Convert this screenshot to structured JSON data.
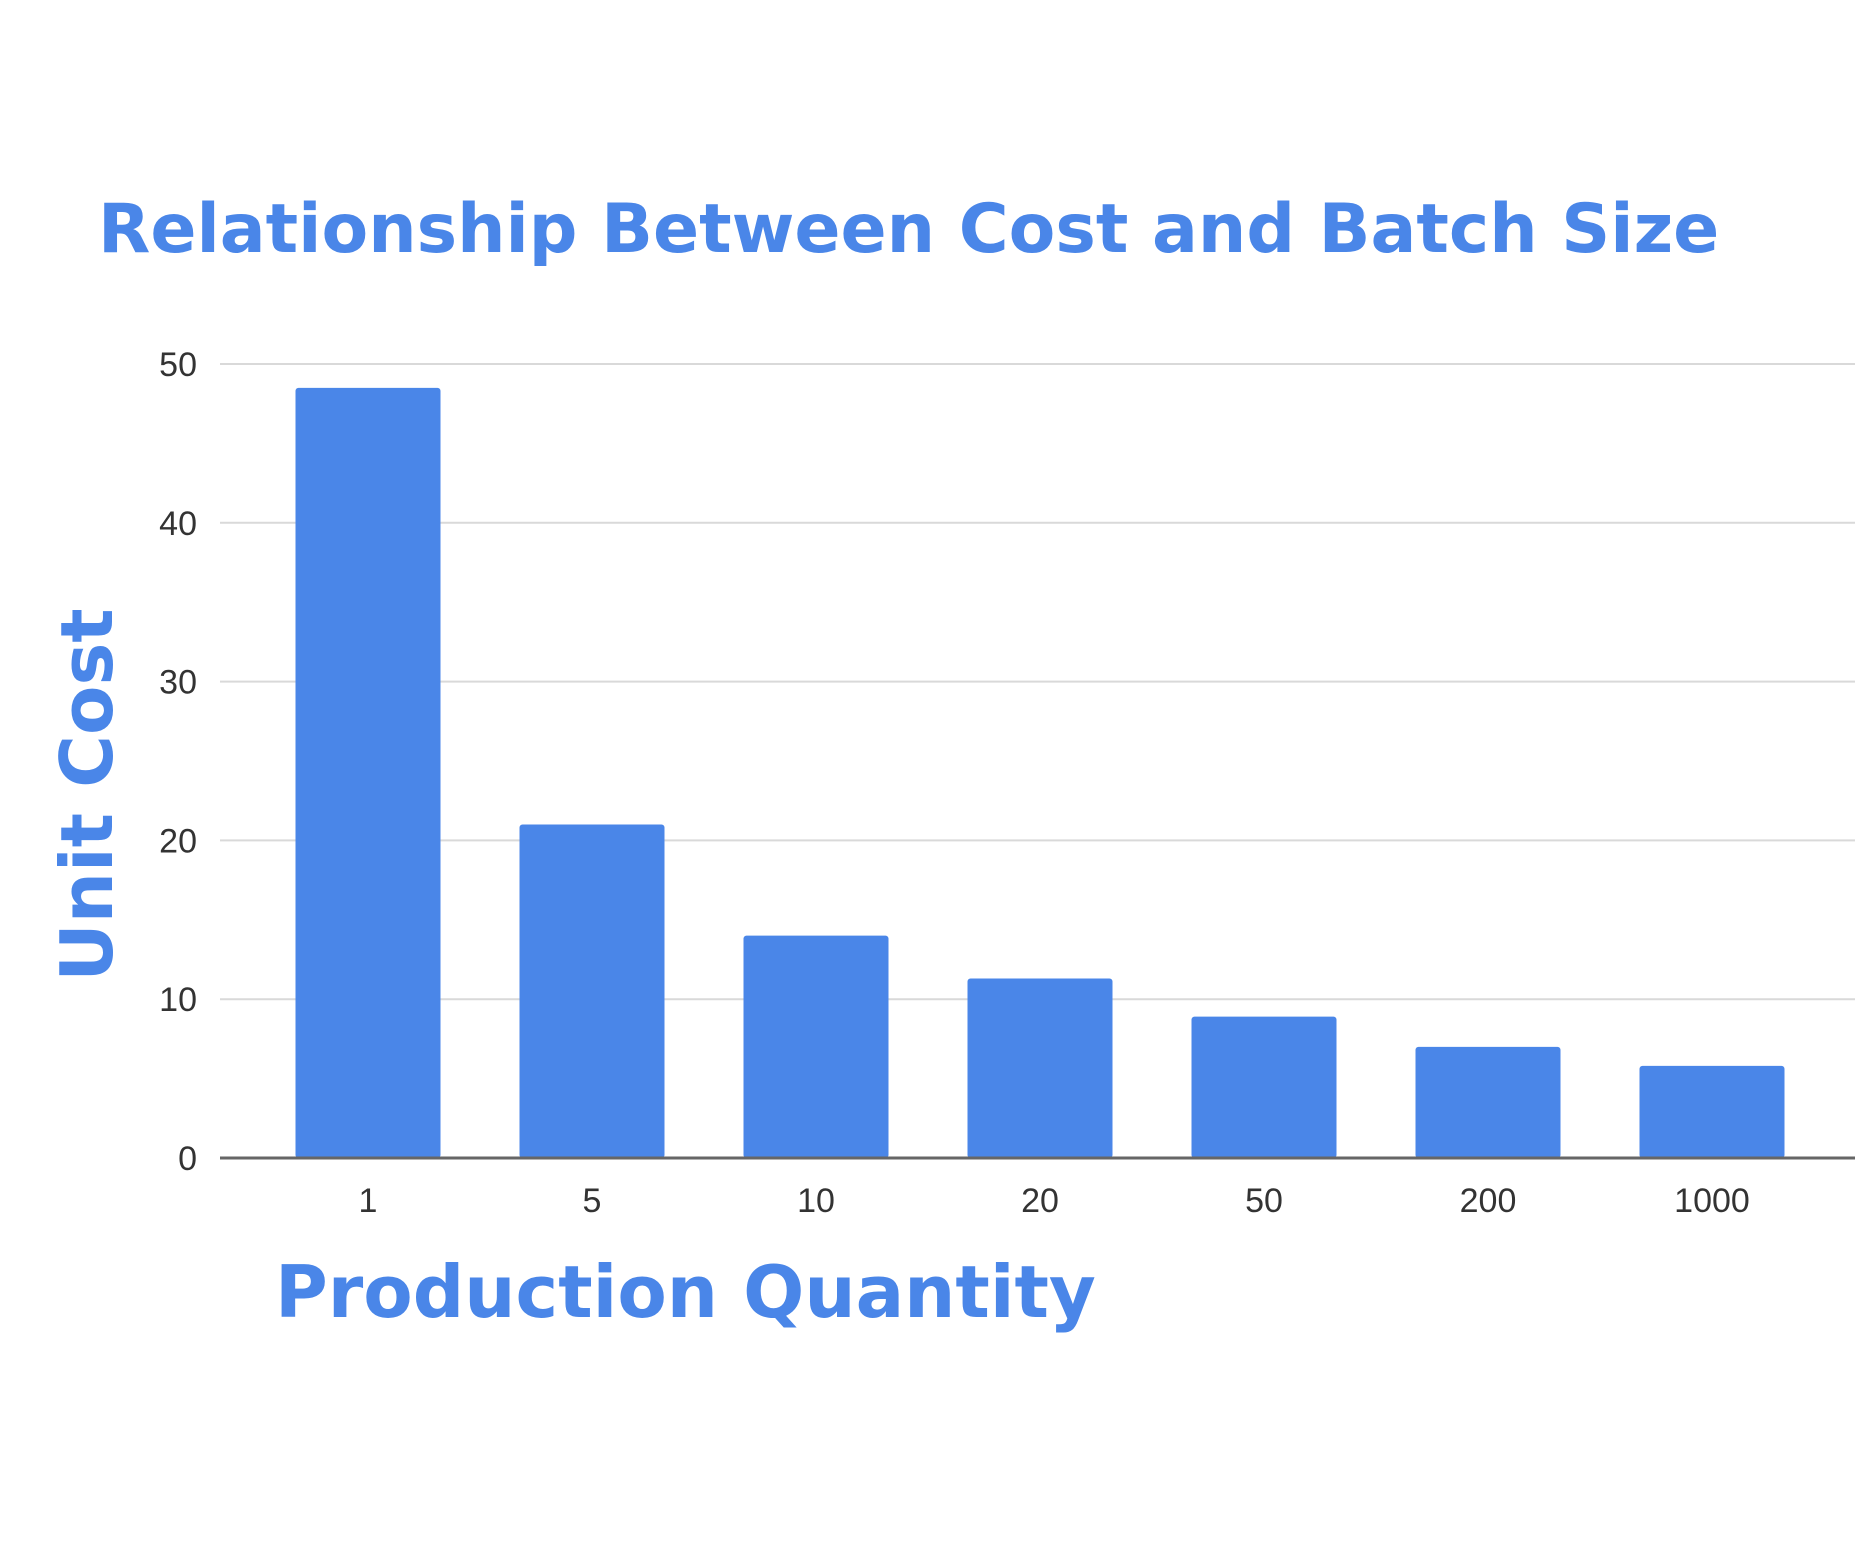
{
  "chart_data": {
    "type": "bar",
    "title": "Relationship Between Cost and Batch Size",
    "xlabel": "Production Quantity",
    "ylabel": "Unit Cost",
    "categories": [
      "1",
      "5",
      "10",
      "20",
      "50",
      "200",
      "1000"
    ],
    "values": [
      48.5,
      21,
      14,
      11.3,
      8.9,
      7,
      5.8
    ],
    "ylim": [
      0,
      50
    ],
    "yticks": [
      "0",
      "10",
      "20",
      "30",
      "40",
      "50"
    ],
    "grid": true,
    "legend": "none",
    "bar_color": "#4a86e8"
  }
}
